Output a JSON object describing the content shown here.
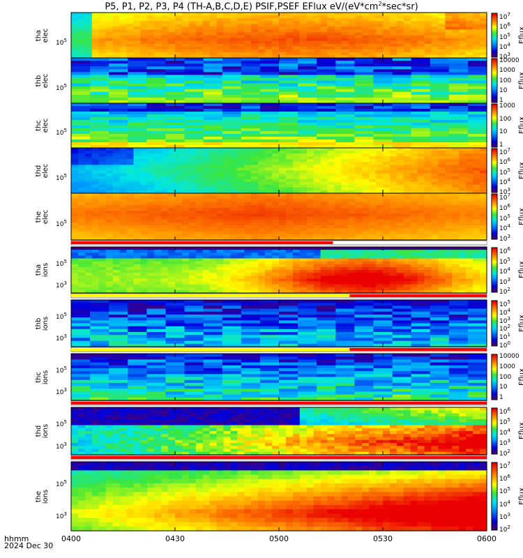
{
  "chart_data": {
    "type": "heatmap",
    "title": "P5, P1, P2, P3, P4 (TH-A,B,C,D,E) PSIF,PSEF EFlux eV/(eV*cm",
    "title_sup": "2",
    "title_tail": "*sec*sr)",
    "x_tick_labels": [
      "0400",
      "0430",
      "0500",
      "0530",
      "0600"
    ],
    "x_unit_label": "hhmm",
    "date_label": "2024 Dec 30",
    "colorbar_label": "Eflux",
    "panels": [
      {
        "probe": "tha",
        "species": "elec",
        "ytick": "10",
        "ysup": "5",
        "cb": [
          {
            "t": "10",
            "s": "7"
          },
          {
            "t": "10",
            "s": "6"
          },
          {
            "t": "10",
            "s": "5"
          },
          {
            "t": "10",
            "s": "4"
          },
          {
            "t": "10",
            "s": "3"
          }
        ],
        "style": "elec_a",
        "bar": null
      },
      {
        "probe": "thb",
        "species": "elec",
        "ytick": "10",
        "ysup": "5",
        "cb": [
          {
            "t": "10000",
            "s": ""
          },
          {
            "t": "1000",
            "s": ""
          },
          {
            "t": "100",
            "s": ""
          },
          {
            "t": "10",
            "s": ""
          },
          {
            "t": "1",
            "s": ""
          }
        ],
        "style": "elec_b",
        "bar": null
      },
      {
        "probe": "thc",
        "species": "elec",
        "ytick": "10",
        "ysup": "5",
        "cb": [
          {
            "t": "1000",
            "s": ""
          },
          {
            "t": "100",
            "s": ""
          },
          {
            "t": "10",
            "s": ""
          },
          {
            "t": "1",
            "s": ""
          }
        ],
        "style": "elec_c",
        "bar": null
      },
      {
        "probe": "thd",
        "species": "elec",
        "ytick": "10",
        "ysup": "5",
        "cb": [
          {
            "t": "10",
            "s": "7"
          },
          {
            "t": "10",
            "s": "6"
          },
          {
            "t": "10",
            "s": "5"
          },
          {
            "t": "10",
            "s": "4"
          },
          {
            "t": "10",
            "s": "3"
          }
        ],
        "style": "elec_d",
        "bar": null
      },
      {
        "probe": "the",
        "species": "elec",
        "ytick": "10",
        "ysup": "5",
        "cb": [
          {
            "t": "10",
            "s": "7"
          },
          {
            "t": "10",
            "s": "6"
          },
          {
            "t": "10",
            "s": "5"
          },
          {
            "t": "10",
            "s": "4"
          },
          {
            "t": "10",
            "s": "3"
          }
        ],
        "style": "elec_e",
        "bar": {
          "split": 0.63,
          "left": "#ff0000",
          "right": "#ffffff"
        }
      },
      {
        "probe": "tha",
        "species": "ions",
        "ytick": "10",
        "ysup": "5",
        "ytick2": "10",
        "ysup2": "3",
        "cb": [
          {
            "t": "10",
            "s": "6"
          },
          {
            "t": "10",
            "s": "5"
          },
          {
            "t": "10",
            "s": "4"
          },
          {
            "t": "10",
            "s": "3"
          },
          {
            "t": "10",
            "s": "2"
          }
        ],
        "style": "ion_a",
        "bar": {
          "split": 0.67,
          "left": "#ffff00",
          "right": "#ff0000"
        }
      },
      {
        "probe": "thb",
        "species": "ions",
        "ytick": "10",
        "ysup": "5",
        "ytick2": "10",
        "ysup2": "3",
        "cb": [
          {
            "t": "10",
            "s": "5"
          },
          {
            "t": "10",
            "s": "4"
          },
          {
            "t": "10",
            "s": "3"
          },
          {
            "t": "10",
            "s": "2"
          },
          {
            "t": "10",
            "s": "1"
          },
          {
            "t": "10",
            "s": "0"
          }
        ],
        "style": "ion_b",
        "bar": {
          "split": 0.67,
          "left": "#ffff00",
          "right": "#ff0000"
        }
      },
      {
        "probe": "thc",
        "species": "ions",
        "ytick": "10",
        "ysup": "5",
        "ytick2": "10",
        "ysup2": "3",
        "cb": [
          {
            "t": "10000",
            "s": ""
          },
          {
            "t": "1000",
            "s": ""
          },
          {
            "t": "100",
            "s": ""
          },
          {
            "t": "10",
            "s": ""
          },
          {
            "t": "1",
            "s": ""
          }
        ],
        "style": "ion_c",
        "bar": {
          "split": 1.0,
          "left": "#ff0000",
          "right": "#ff0000"
        }
      },
      {
        "probe": "thd",
        "species": "ions",
        "ytick": "10",
        "ysup": "5",
        "ytick2": "10",
        "ysup2": "3",
        "cb": [
          {
            "t": "10",
            "s": "6"
          },
          {
            "t": "10",
            "s": "5"
          },
          {
            "t": "10",
            "s": "4"
          },
          {
            "t": "10",
            "s": "3"
          },
          {
            "t": "10",
            "s": "2"
          }
        ],
        "style": "ion_d",
        "bar": {
          "split": 1.0,
          "left": "#ff0000",
          "right": "#ff0000"
        }
      },
      {
        "probe": "the",
        "species": "ions",
        "ytick": "10",
        "ysup": "5",
        "ytick2": "10",
        "ysup2": "3",
        "cb": [
          {
            "t": "10",
            "s": "7"
          },
          {
            "t": "10",
            "s": "6"
          },
          {
            "t": "10",
            "s": "5"
          },
          {
            "t": "10",
            "s": "4"
          },
          {
            "t": "10",
            "s": "3"
          },
          {
            "t": "10",
            "s": "2"
          }
        ],
        "style": "ion_e",
        "bar": null
      }
    ]
  }
}
